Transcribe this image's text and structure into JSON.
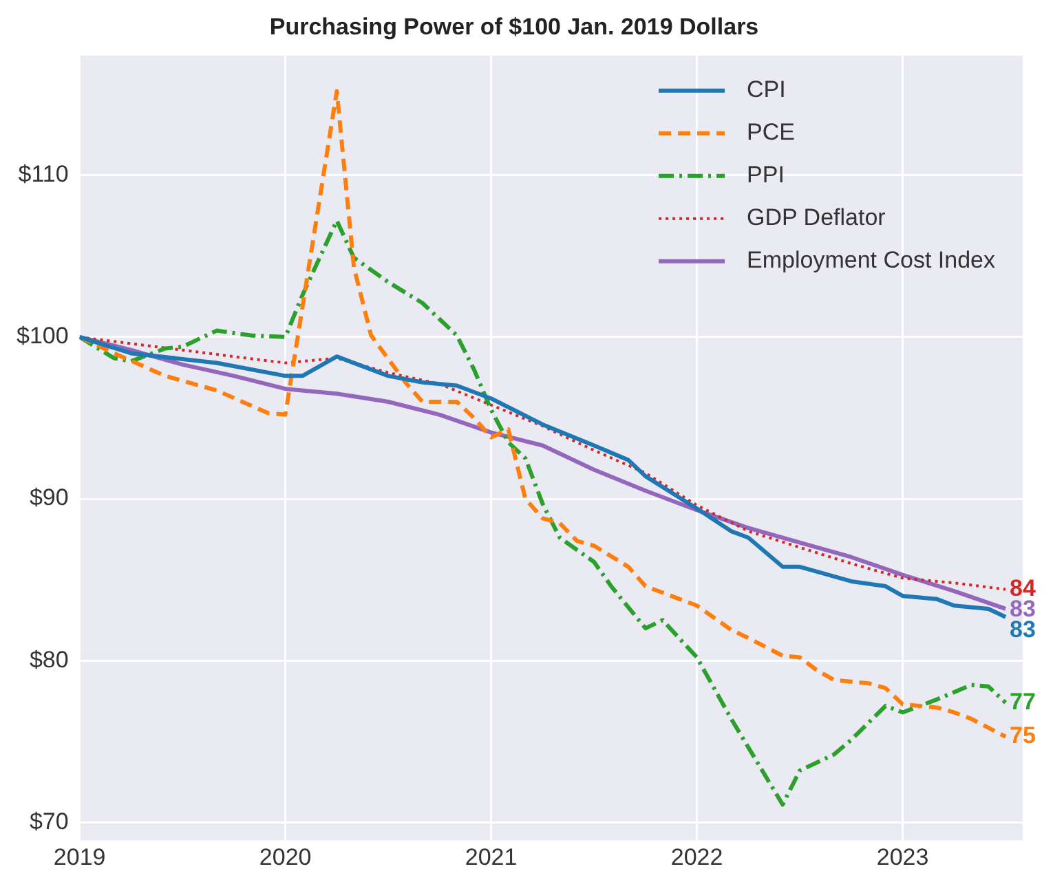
{
  "chart_data": {
    "type": "line",
    "title": "Purchasing Power of $100 Jan. 2019 Dollars",
    "xlim": [
      "2019-01",
      "2023-08"
    ],
    "xticks": [
      "2019",
      "2020",
      "2021",
      "2022",
      "2023"
    ],
    "ylim": [
      68.9,
      117.4
    ],
    "yticks": [
      {
        "value": 70,
        "label": "$70"
      },
      {
        "value": 80,
        "label": "$80"
      },
      {
        "value": 90,
        "label": "$90"
      },
      {
        "value": 100,
        "label": "$100"
      },
      {
        "value": 110,
        "label": "$110"
      }
    ],
    "grid": true,
    "legend": "top right",
    "marker": "none",
    "series": [
      {
        "name": "CPI",
        "color": "#1f77b4",
        "line_style": "solid",
        "x": [
          "2019-01",
          "2019-04",
          "2019-09",
          "2020-01",
          "2020-02",
          "2020-04",
          "2020-07",
          "2020-09",
          "2020-11",
          "2021-01",
          "2021-04",
          "2021-07",
          "2021-09",
          "2021-10",
          "2022-01",
          "2022-03",
          "2022-04",
          "2022-06",
          "2022-07",
          "2022-09",
          "2022-10",
          "2022-12",
          "2023-01",
          "2023-03",
          "2023-04",
          "2023-06",
          "2023-07"
        ],
        "values": [
          100,
          99.0,
          98.4,
          97.6,
          97.6,
          98.8,
          97.6,
          97.2,
          97.0,
          96.2,
          94.6,
          93.3,
          92.4,
          91.4,
          89.4,
          88.0,
          87.6,
          85.8,
          85.8,
          85.2,
          84.9,
          84.6,
          84.0,
          83.8,
          83.4,
          83.2,
          82.7
        ],
        "value_labels": [
          null,
          null,
          null,
          null,
          null,
          null,
          null,
          null,
          null,
          null,
          null,
          null,
          null,
          null,
          null,
          null,
          null,
          null,
          null,
          null,
          null,
          null,
          null,
          null,
          null,
          null,
          "83"
        ]
      },
      {
        "name": "PCE",
        "color": "#ff7f0e",
        "line_style": "dashed",
        "x": [
          "2019-01",
          "2019-03",
          "2019-06",
          "2019-09",
          "2019-12",
          "2020-01",
          "2020-04",
          "2020-05",
          "2020-06",
          "2020-08",
          "2020-09",
          "2020-11",
          "2020-12",
          "2021-01",
          "2021-02",
          "2021-03",
          "2021-04",
          "2021-05",
          "2021-06",
          "2021-07",
          "2021-09",
          "2021-10",
          "2021-12",
          "2022-01",
          "2022-03",
          "2022-04",
          "2022-06",
          "2022-07",
          "2022-08",
          "2022-09",
          "2022-11",
          "2022-12",
          "2023-01",
          "2023-03",
          "2023-04",
          "2023-05",
          "2023-07"
        ],
        "values": [
          100,
          99.0,
          97.6,
          96.7,
          95.3,
          95.2,
          115.2,
          104.3,
          100.1,
          97.2,
          96.0,
          96.0,
          95.0,
          93.8,
          94.3,
          90.0,
          88.8,
          88.5,
          87.4,
          87.1,
          85.8,
          84.6,
          83.8,
          83.4,
          81.9,
          81.4,
          80.3,
          80.2,
          79.4,
          78.8,
          78.6,
          78.3,
          77.3,
          77.1,
          76.8,
          76.4,
          75.3
        ],
        "value_labels": [
          null,
          null,
          null,
          null,
          null,
          null,
          null,
          null,
          null,
          null,
          null,
          null,
          null,
          null,
          null,
          null,
          null,
          null,
          null,
          null,
          null,
          null,
          null,
          null,
          null,
          null,
          null,
          null,
          null,
          null,
          null,
          null,
          null,
          null,
          null,
          null,
          "75"
        ]
      },
      {
        "name": "PPI",
        "color": "#2ca02c",
        "line_style": "dashdot",
        "x": [
          "2019-01",
          "2019-03",
          "2019-04",
          "2019-06",
          "2019-07",
          "2019-09",
          "2019-11",
          "2020-01",
          "2020-02",
          "2020-04",
          "2020-05",
          "2020-07",
          "2020-09",
          "2020-11",
          "2020-12",
          "2021-01",
          "2021-02",
          "2021-03",
          "2021-04",
          "2021-05",
          "2021-07",
          "2021-08",
          "2021-10",
          "2021-11",
          "2022-01",
          "2022-03",
          "2022-06",
          "2022-07",
          "2022-09",
          "2022-10",
          "2022-12",
          "2023-01",
          "2023-02",
          "2023-03",
          "2023-05",
          "2023-06",
          "2023-07"
        ],
        "values": [
          100,
          98.7,
          98.5,
          99.3,
          99.4,
          100.4,
          100.1,
          100.0,
          102.6,
          107.2,
          104.9,
          103.4,
          102.1,
          100.1,
          98.0,
          95.5,
          93.5,
          92.5,
          89.7,
          87.6,
          86.1,
          84.6,
          82.0,
          82.5,
          80.2,
          76.4,
          71.1,
          73.2,
          74.2,
          75.1,
          77.2,
          76.8,
          77.2,
          77.6,
          78.5,
          78.4,
          77.4
        ],
        "value_labels": [
          null,
          null,
          null,
          null,
          null,
          null,
          null,
          null,
          null,
          null,
          null,
          null,
          null,
          null,
          null,
          null,
          null,
          null,
          null,
          null,
          null,
          null,
          null,
          null,
          null,
          null,
          null,
          null,
          null,
          null,
          null,
          null,
          null,
          null,
          null,
          null,
          "77"
        ]
      },
      {
        "name": "GDP Deflator",
        "color": "#d62728",
        "line_style": "dotted",
        "x": [
          "2019-01",
          "2019-04",
          "2019-07",
          "2019-10",
          "2020-01",
          "2020-04",
          "2020-07",
          "2020-10",
          "2021-01",
          "2021-04",
          "2021-07",
          "2021-10",
          "2022-01",
          "2022-04",
          "2022-07",
          "2022-10",
          "2023-01",
          "2023-04",
          "2023-07"
        ],
        "values": [
          100,
          99.6,
          99.2,
          98.8,
          98.4,
          98.7,
          97.8,
          97.1,
          95.8,
          94.5,
          93.0,
          91.6,
          89.6,
          88.0,
          87.0,
          86.0,
          85.1,
          84.8,
          84.4
        ],
        "value_labels": [
          null,
          null,
          null,
          null,
          null,
          null,
          null,
          null,
          null,
          null,
          null,
          null,
          null,
          null,
          null,
          null,
          null,
          null,
          "84"
        ]
      },
      {
        "name": "Employment Cost Index",
        "color": "#9467bd",
        "line_style": "solid",
        "x": [
          "2019-01",
          "2019-04",
          "2019-07",
          "2019-10",
          "2020-01",
          "2020-04",
          "2020-07",
          "2020-10",
          "2021-01",
          "2021-04",
          "2021-07",
          "2021-10",
          "2022-01",
          "2022-04",
          "2022-07",
          "2022-10",
          "2023-01",
          "2023-04",
          "2023-07"
        ],
        "values": [
          100,
          99.2,
          98.3,
          97.6,
          96.8,
          96.5,
          96.0,
          95.2,
          94.1,
          93.3,
          91.8,
          90.5,
          89.3,
          88.2,
          87.3,
          86.4,
          85.3,
          84.3,
          83.2
        ],
        "value_labels": [
          null,
          null,
          null,
          null,
          null,
          null,
          null,
          null,
          null,
          null,
          null,
          null,
          null,
          null,
          null,
          null,
          null,
          null,
          "83"
        ]
      }
    ]
  }
}
